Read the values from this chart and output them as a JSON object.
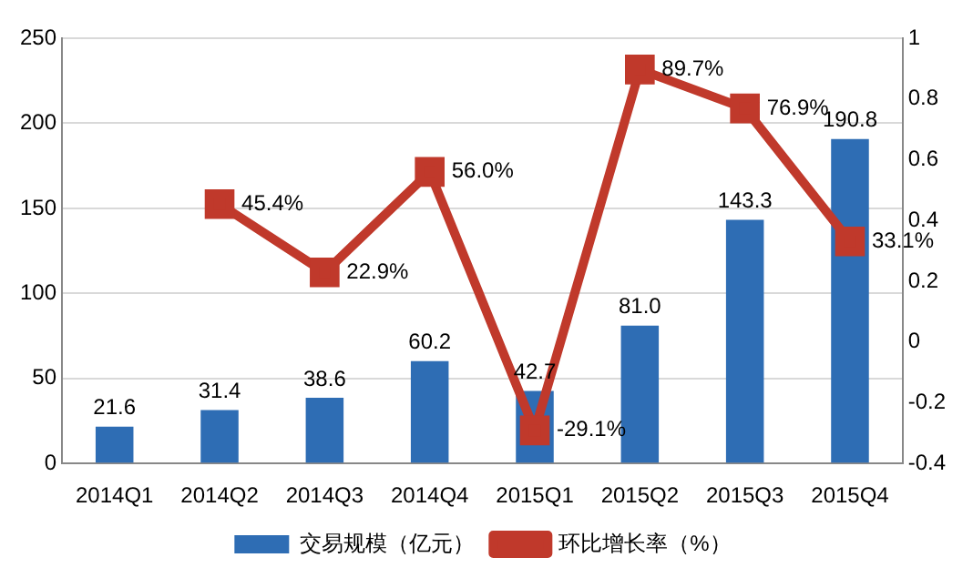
{
  "chart_data": {
    "type": "bar",
    "categories": [
      "2014Q1",
      "2014Q2",
      "2014Q3",
      "2014Q4",
      "2015Q1",
      "2015Q2",
      "2015Q3",
      "2015Q4"
    ],
    "series": [
      {
        "name": "交易规模（亿元）",
        "color": "#2e6db4",
        "values": [
          21.6,
          31.4,
          38.6,
          60.2,
          42.7,
          81.0,
          143.3,
          190.8
        ],
        "value_labels": [
          "21.6",
          "31.4",
          "38.6",
          "60.2",
          "42.7",
          "81.0",
          "143.3",
          "190.8"
        ]
      },
      {
        "name": "环比增长率（%）",
        "type": "line",
        "axis": "y2",
        "color": "#c0392b",
        "marker": "square",
        "line_style": "solid",
        "values": [
          null,
          0.454,
          0.229,
          0.56,
          -0.291,
          0.897,
          0.769,
          0.331
        ],
        "value_labels": [
          null,
          "45.4%",
          "22.9%",
          "56.0%",
          "-29.1%",
          "89.7%",
          "76.9%",
          "33.1%"
        ]
      }
    ],
    "ylim": [
      0,
      250
    ],
    "yticks": [
      0,
      50,
      100,
      150,
      200,
      250
    ],
    "y2lim": [
      -0.4,
      1
    ],
    "y2ticks": [
      -0.4,
      -0.2,
      0,
      0.2,
      0.4,
      0.6,
      0.8,
      1
    ],
    "grid": "y",
    "legend": "bottom"
  }
}
